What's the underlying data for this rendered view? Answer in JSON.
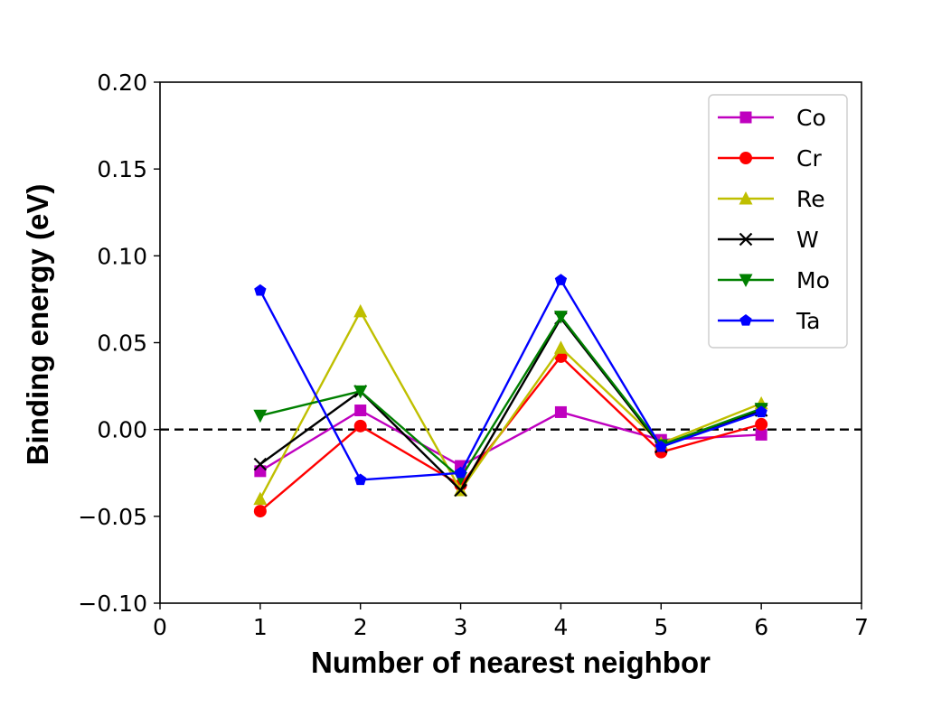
{
  "chart_data": {
    "type": "line",
    "title": "",
    "xlabel": "Number of nearest neighbor",
    "ylabel": "Binding energy (eV)",
    "xlim": [
      0,
      7
    ],
    "ylim": [
      -0.1,
      0.2
    ],
    "xticks": [
      0,
      1,
      2,
      3,
      4,
      5,
      6,
      7
    ],
    "yticks": [
      -0.1,
      -0.05,
      0.0,
      0.05,
      0.1,
      0.15,
      0.2
    ],
    "xtick_labels": [
      "0",
      "1",
      "2",
      "3",
      "4",
      "5",
      "6",
      "7"
    ],
    "ytick_labels": [
      "−0.10",
      "−0.05",
      "0.00",
      "0.05",
      "0.10",
      "0.15",
      "0.20"
    ],
    "grid": false,
    "legend_position": "top-right",
    "reference_line": {
      "y": 0.0,
      "style": "dashed",
      "color": "#000000"
    },
    "x": [
      1,
      2,
      3,
      4,
      5,
      6
    ],
    "series": [
      {
        "name": "Co",
        "color": "#bf00bf",
        "marker": "square",
        "values": [
          -0.024,
          0.011,
          -0.021,
          0.01,
          -0.006,
          -0.003
        ]
      },
      {
        "name": "Cr",
        "color": "#ff0000",
        "marker": "circle",
        "values": [
          -0.047,
          0.002,
          -0.032,
          0.042,
          -0.013,
          0.003
        ]
      },
      {
        "name": "Re",
        "color": "#bfbf00",
        "marker": "triangle-up",
        "values": [
          -0.04,
          0.068,
          -0.035,
          0.047,
          -0.008,
          0.015
        ]
      },
      {
        "name": "W",
        "color": "#000000",
        "marker": "x",
        "values": [
          -0.02,
          0.022,
          -0.035,
          0.064,
          -0.01,
          0.011
        ]
      },
      {
        "name": "Mo",
        "color": "#008000",
        "marker": "triangle-down",
        "values": [
          0.008,
          0.022,
          -0.028,
          0.065,
          -0.009,
          0.012
        ]
      },
      {
        "name": "Ta",
        "color": "#0000ff",
        "marker": "pentagon",
        "values": [
          0.08,
          -0.029,
          -0.025,
          0.086,
          -0.01,
          0.01
        ]
      }
    ]
  }
}
